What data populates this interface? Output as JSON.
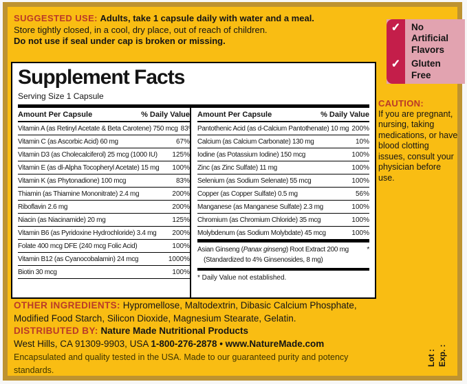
{
  "colors": {
    "background": "#F9BD13",
    "frame": "#BE9330",
    "accent_red": "#BA3A28",
    "crimson": "#C41E4A",
    "pink": "#E2A3B0",
    "panel_bg": "#FFFFFF"
  },
  "suggested_use": {
    "label": "SUGGESTED USE:",
    "instruction": "Adults, take 1 capsule daily with water and a meal.",
    "storage": "Store tightly closed, in a cool, dry place, out of reach of children.",
    "warning": "Do not use if seal under cap is broken or missing."
  },
  "badges": {
    "check_icon": "✓",
    "items": [
      {
        "label": "No Artificial Flavors"
      },
      {
        "label": "Gluten Free"
      }
    ]
  },
  "caution": {
    "label": "CAUTION:",
    "text": "If you are pregnant, nursing, taking medications, or have blood clotting issues, consult your physician before use."
  },
  "supplement_facts": {
    "title": "Supplement Facts",
    "serving_size": "Serving Size 1 Capsule",
    "amount_header": "Amount Per Capsule",
    "dv_header": "% Daily Value",
    "left_rows": [
      {
        "name": "Vitamin A (as Retinyl Acetate & Beta Carotene) 750 mcg",
        "dv": "83%"
      },
      {
        "name": "Vitamin C (as Ascorbic Acid) 60 mg",
        "dv": "67%"
      },
      {
        "name": "Vitamin D3 (as Cholecalciferol) 25 mcg (1000 IU)",
        "dv": "125%"
      },
      {
        "name": "Vitamin E (as dl-Alpha Tocopheryl Acetate) 15 mg",
        "dv": "100%"
      },
      {
        "name": "Vitamin K (as Phytonadione) 100 mcg",
        "dv": "83%"
      },
      {
        "name": "Thiamin (as Thiamine Mononitrate) 2.4 mg",
        "dv": "200%"
      },
      {
        "name": "Riboflavin 2.6 mg",
        "dv": "200%"
      },
      {
        "name": "Niacin (as Niacinamide) 20 mg",
        "dv": "125%"
      },
      {
        "name": "Vitamin B6 (as Pyridoxine Hydrochloride) 3.4 mg",
        "dv": "200%"
      },
      {
        "name": "Folate 400 mcg DFE (240 mcg Folic Acid)",
        "dv": "100%"
      },
      {
        "name": "Vitamin B12 (as Cyanocobalamin) 24 mcg",
        "dv": "1000%"
      },
      {
        "name": "Biotin 30 mcg",
        "dv": "100%"
      }
    ],
    "right_rows": [
      {
        "name": "Pantothenic Acid (as d-Calcium Pantothenate) 10 mg",
        "dv": "200%"
      },
      {
        "name": "Calcium (as Calcium Carbonate) 130 mg",
        "dv": "10%"
      },
      {
        "name": "Iodine (as Potassium Iodine) 150 mcg",
        "dv": "100%"
      },
      {
        "name": "Zinc (as Zinc Sulfate) 11 mg",
        "dv": "100%"
      },
      {
        "name": "Selenium (as Sodium Selenate) 55 mcg",
        "dv": "100%"
      },
      {
        "name": "Copper (as Copper Sulfate) 0.5 mg",
        "dv": "56%"
      },
      {
        "name": "Manganese (as Manganese Sulfate) 2.3 mg",
        "dv": "100%"
      },
      {
        "name": "Chromium (as Chromium Chloride) 35 mcg",
        "dv": "100%"
      },
      {
        "name": "Molybdenum (as Sodium Molybdate) 45 mcg",
        "dv": "100%"
      }
    ],
    "botanical": {
      "name_prefix": "Asian Ginseng (",
      "name_italic": "Panax ginseng",
      "name_suffix": ") Root Extract 200 mg",
      "dv": "*",
      "detail": "(Standardized to 4% Ginsenosides, 8 mg)"
    },
    "footnote": "* Daily Value not established."
  },
  "other_ingredients": {
    "label": "OTHER INGREDIENTS:",
    "text": "Hypromellose, Maltodextrin, Dibasic Calcium Phosphate, Modified Food Starch, Silicon Dioxide, Magnesium Stearate, Gelatin."
  },
  "distribution": {
    "label": "DISTRIBUTED BY:",
    "company": "Nature Made Nutritional Products",
    "address": "West Hills, CA 91309-9903, USA",
    "phone_web": "1-800-276-2878 • www.NatureMade.com",
    "quality_note": "Encapsulated and quality tested in the USA. Made to our guaranteed purity and potency standards."
  },
  "lot_exp": {
    "lot": "Lot :",
    "exp": "Exp. :"
  }
}
